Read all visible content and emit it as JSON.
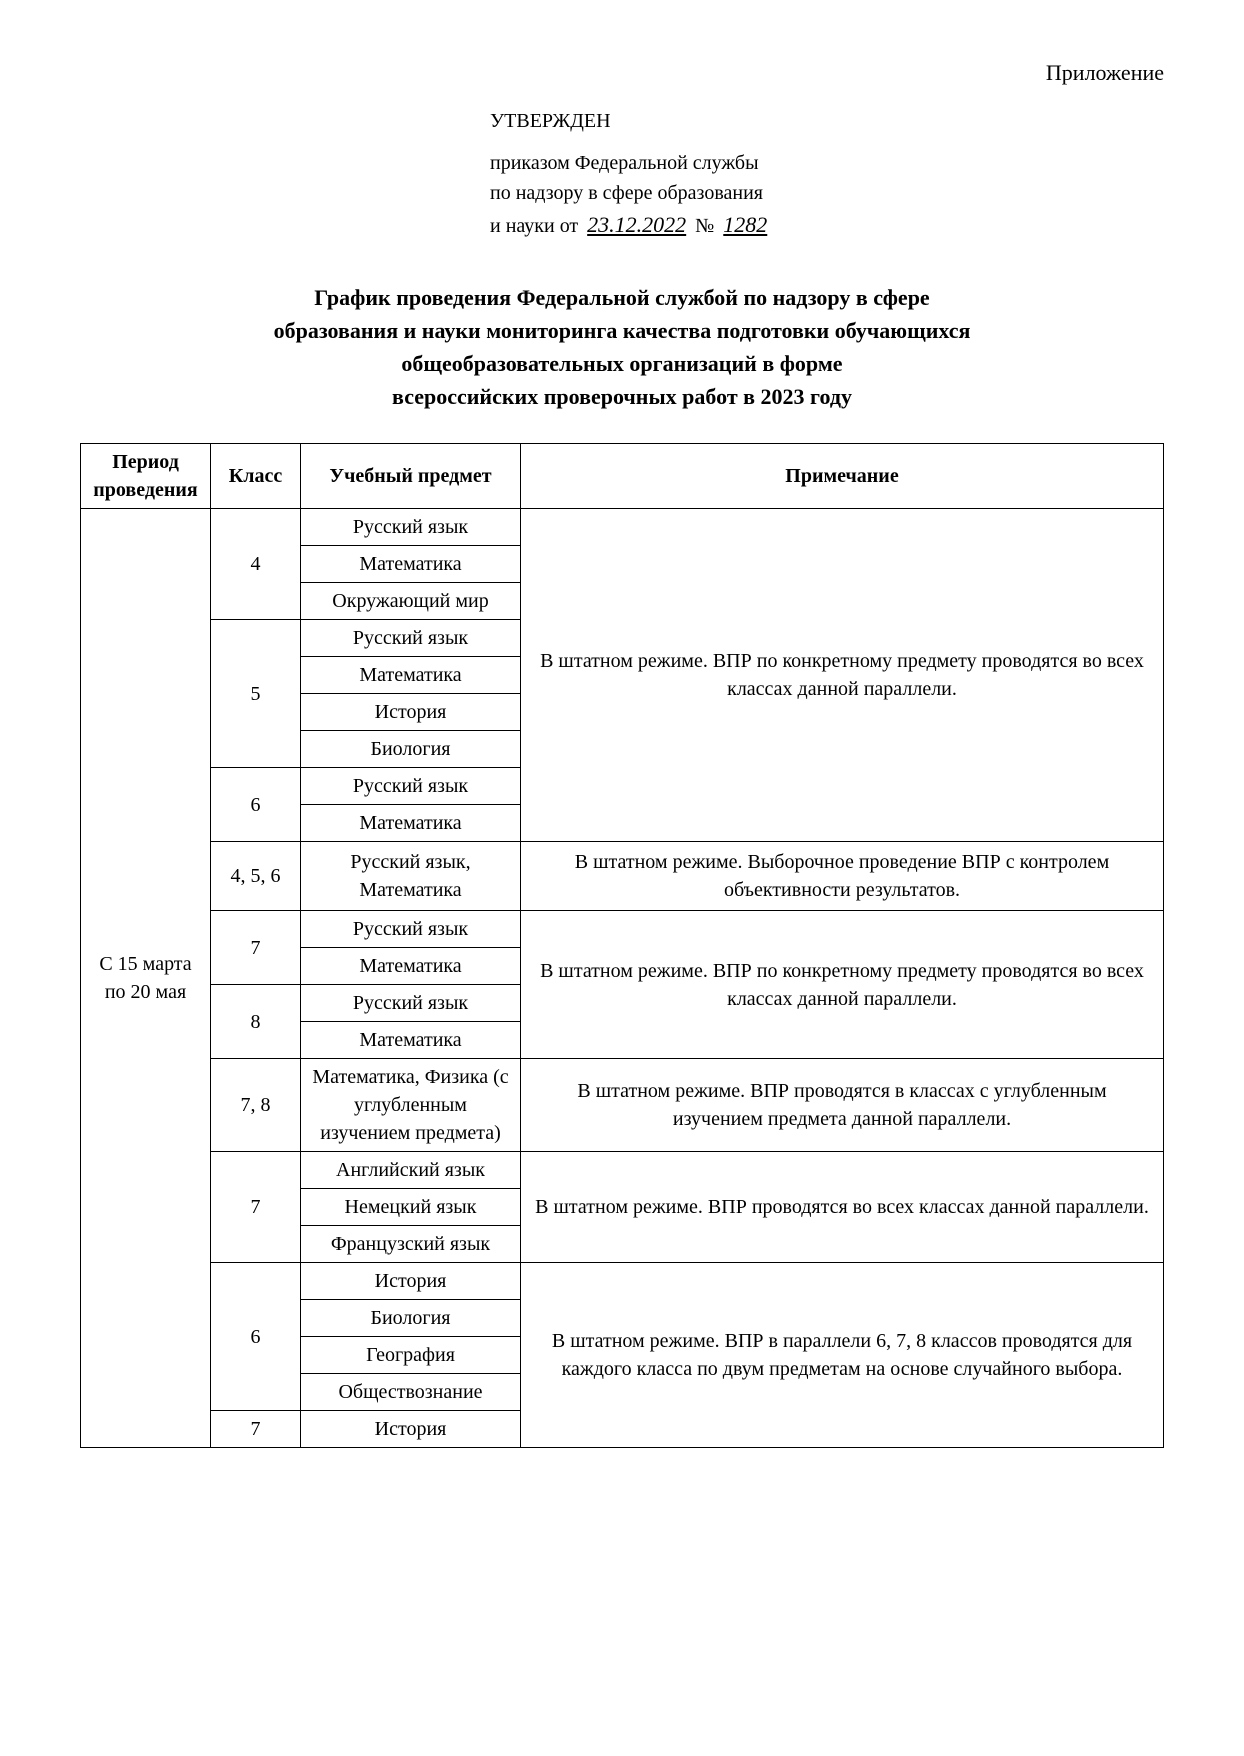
{
  "header": {
    "appendix": "Приложение",
    "approved": "УТВЕРЖДЕН",
    "order_line1": "приказом Федеральной службы",
    "order_line2": "по надзору в сфере образования",
    "order_line3_prefix": "и науки от ",
    "order_date": "23.12.2022",
    "order_number_label": " № ",
    "order_number": "1282"
  },
  "title": {
    "line1": "График проведения Федеральной службой по надзору в сфере",
    "line2": "образования и науки мониторинга качества подготовки обучающихся",
    "line3": "общеобразовательных организаций в форме",
    "line4": "всероссийских проверочных работ в 2023 году"
  },
  "table": {
    "headers": {
      "period": "Период проведения",
      "class": "Класс",
      "subject": "Учебный предмет",
      "note": "Примечание"
    },
    "period_label": "С 15 марта по 20 мая",
    "note1": "В штатном режиме. ВПР по конкретному предмету проводятся во всех классах данной параллели.",
    "note2": "В штатном режиме. Выборочное проведение ВПР с контролем объективности результатов.",
    "note3": "В штатном режиме. ВПР по конкретному предмету проводятся во всех классах данной параллели.",
    "note4": "В штатном режиме. ВПР проводятся в классах с углубленным изучением предмета данной параллели.",
    "note5": "В штатном режиме. ВПР проводятся во всех классах данной параллели.",
    "note6": "В штатном режиме. ВПР в параллели 6, 7, 8 классов проводятся для каждого класса по двум предметам на основе случайного выбора.",
    "classes": {
      "c4": "4",
      "c5": "5",
      "c6": "6",
      "c456": "4, 5, 6",
      "c7": "7",
      "c8": "8",
      "c78": "7, 8"
    },
    "subjects": {
      "rus": "Русский язык",
      "math": "Математика",
      "world": "Окружающий мир",
      "hist": "История",
      "bio": "Биология",
      "rus_math": "Русский язык, Математика",
      "math_phys_deep": "Математика, Физика (с углубленным изучением предмета)",
      "eng": "Английский язык",
      "ger": "Немецкий язык",
      "fre": "Французский язык",
      "geo": "География",
      "soc": "Обществознание"
    }
  }
}
